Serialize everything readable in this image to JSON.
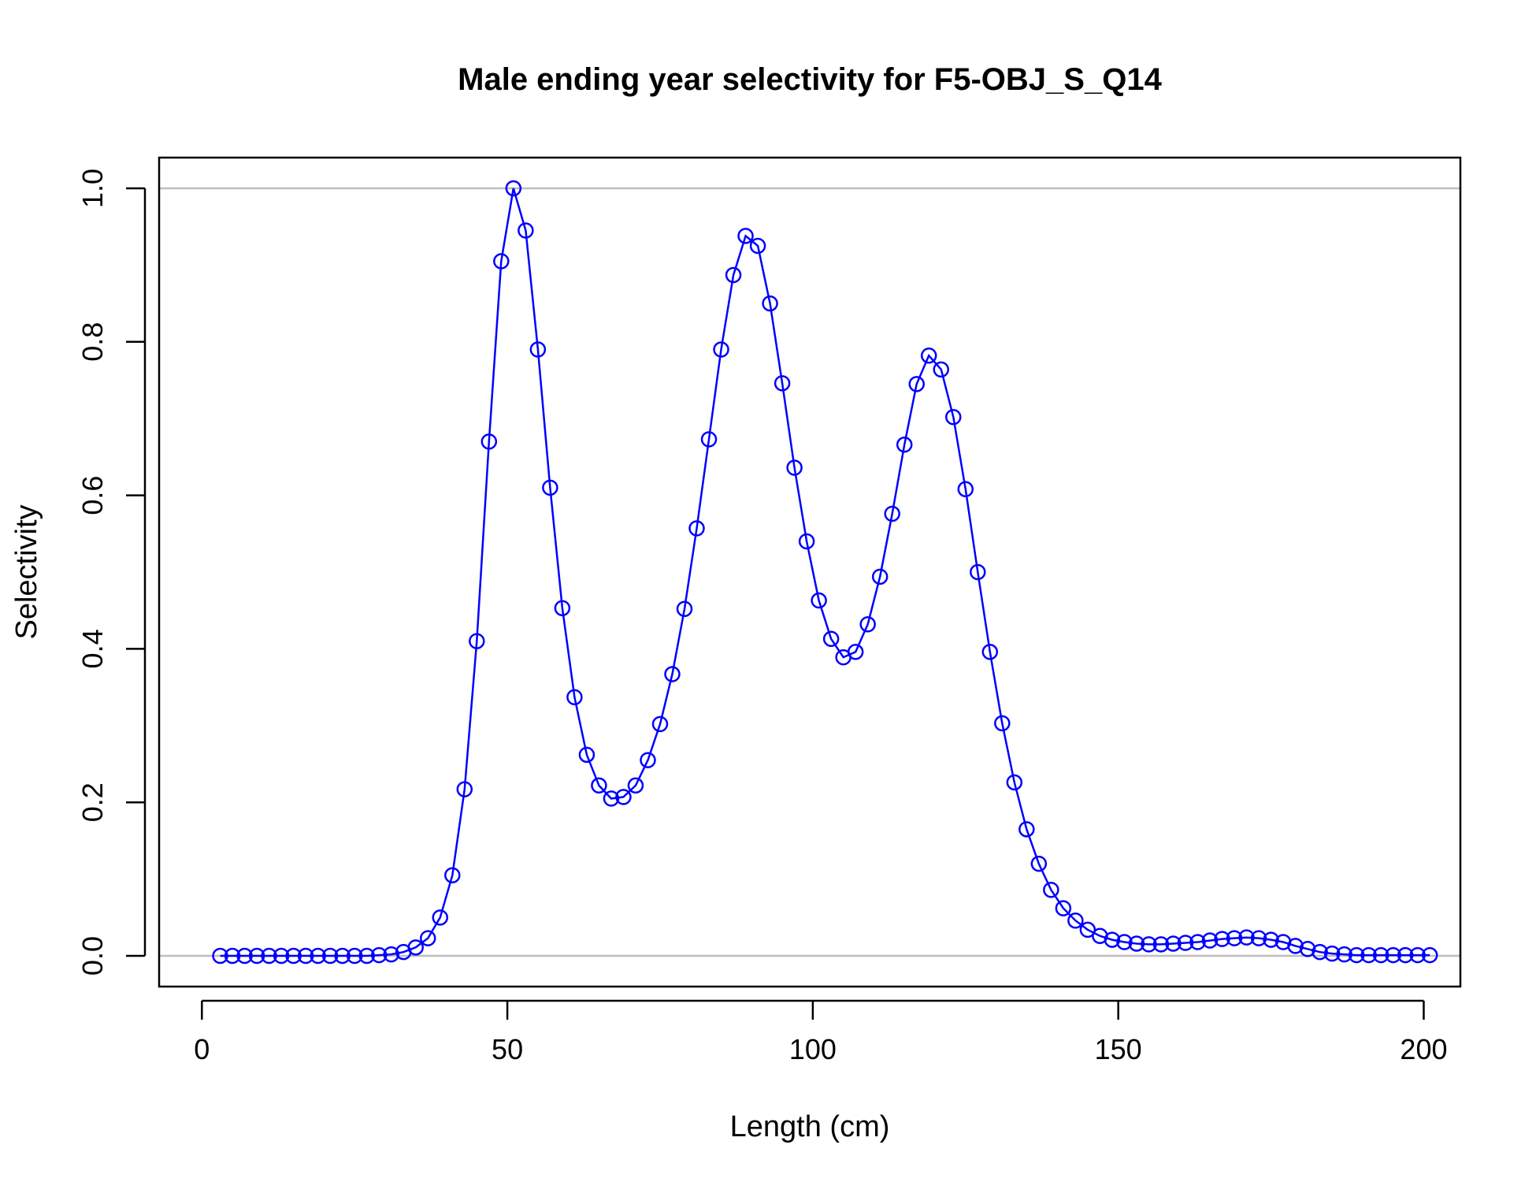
{
  "chart_data": {
    "type": "line",
    "title": "Male ending year selectivity for F5-OBJ_S_Q14",
    "xlabel": "Length (cm)",
    "ylabel": "Selectivity",
    "xlim": [
      -7,
      206
    ],
    "ylim": [
      -0.04,
      1.04
    ],
    "xticks": [
      0,
      50,
      100,
      150,
      200
    ],
    "xtick_labels": [
      "0",
      "50",
      "100",
      "150",
      "200"
    ],
    "yticks": [
      0,
      0.2,
      0.4,
      0.6,
      0.8,
      1.0
    ],
    "ytick_labels": [
      "0.0",
      "0.2",
      "0.4",
      "0.6",
      "0.8",
      "1.0"
    ],
    "reference_lines_y": [
      0,
      1
    ],
    "grid": false,
    "line_color": "#0000ff",
    "reference_line_color": "#bebebe",
    "markers": "open-circle",
    "series": [
      {
        "x": [
          3,
          5,
          7,
          9,
          11,
          13,
          15,
          17,
          19,
          21,
          23,
          25,
          27,
          29,
          31,
          33,
          35,
          37,
          39,
          41,
          43,
          45,
          47,
          49,
          51,
          53,
          55,
          57,
          59,
          61,
          63,
          65,
          67,
          69,
          71,
          73,
          75,
          77,
          79,
          81,
          83,
          85,
          87,
          89,
          91,
          93,
          95,
          97,
          99,
          101,
          103,
          105,
          107,
          109,
          111,
          113,
          115,
          117,
          119,
          121,
          123,
          125,
          127,
          129,
          131,
          133,
          135,
          137,
          139,
          141,
          143,
          145,
          147,
          149,
          151,
          153,
          155,
          157,
          159,
          161,
          163,
          165,
          167,
          169,
          171,
          173,
          175,
          177,
          179,
          181,
          183,
          185,
          187,
          189,
          191,
          193,
          195,
          197,
          199,
          201
        ],
        "y": [
          0,
          0,
          0,
          0,
          0,
          0,
          0,
          0,
          0,
          0,
          0,
          0,
          0,
          0.001,
          0.002,
          0.005,
          0.011,
          0.023,
          0.05,
          0.105,
          0.217,
          0.41,
          0.67,
          0.905,
          1.0,
          0.945,
          0.79,
          0.61,
          0.453,
          0.337,
          0.262,
          0.222,
          0.205,
          0.207,
          0.222,
          0.255,
          0.302,
          0.367,
          0.452,
          0.557,
          0.673,
          0.79,
          0.887,
          0.938,
          0.925,
          0.85,
          0.746,
          0.636,
          0.54,
          0.463,
          0.413,
          0.389,
          0.396,
          0.432,
          0.494,
          0.576,
          0.666,
          0.745,
          0.782,
          0.764,
          0.702,
          0.608,
          0.5,
          0.396,
          0.303,
          0.226,
          0.165,
          0.12,
          0.086,
          0.062,
          0.046,
          0.034,
          0.026,
          0.021,
          0.018,
          0.016,
          0.015,
          0.015,
          0.016,
          0.017,
          0.018,
          0.02,
          0.022,
          0.023,
          0.024,
          0.023,
          0.021,
          0.018,
          0.013,
          0.009,
          0.005,
          0.003,
          0.002,
          0.001,
          0.001,
          0.001,
          0.001,
          0.001,
          0.001,
          0.001
        ]
      }
    ]
  }
}
